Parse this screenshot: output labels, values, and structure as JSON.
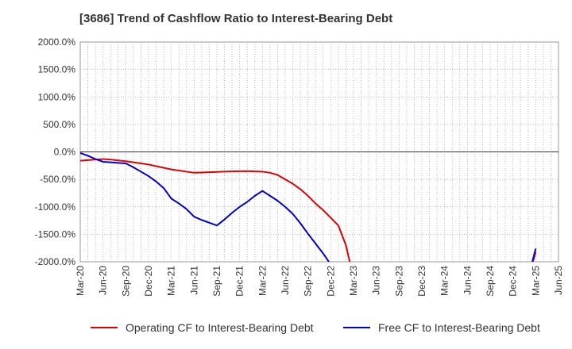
{
  "chart_data": {
    "type": "line",
    "title": "[3686]  Trend of Cashflow Ratio to Interest-Bearing Debt",
    "xlabel": "",
    "ylabel": "",
    "ylim": [
      -2000,
      2000
    ],
    "y_ticks": [
      "2000.0%",
      "1500.0%",
      "1000.0%",
      "500.0%",
      "0.0%",
      "-500.0%",
      "-1000.0%",
      "-1500.0%",
      "-2000.0%"
    ],
    "x_ticks": [
      "Mar-20",
      "Jun-20",
      "Sep-20",
      "Dec-20",
      "Mar-21",
      "Jun-21",
      "Sep-21",
      "Dec-21",
      "Mar-22",
      "Jun-22",
      "Sep-22",
      "Dec-22",
      "Mar-23",
      "Jun-23",
      "Sep-23",
      "Dec-23",
      "Mar-24",
      "Jun-24",
      "Sep-24",
      "Dec-24",
      "Mar-25",
      "Jun-25"
    ],
    "x": [
      "2020-03",
      "2020-04",
      "2020-05",
      "2020-06",
      "2020-07",
      "2020-08",
      "2020-09",
      "2020-10",
      "2020-11",
      "2020-12",
      "2021-01",
      "2021-02",
      "2021-03",
      "2021-04",
      "2021-05",
      "2021-06",
      "2021-07",
      "2021-08",
      "2021-09",
      "2021-10",
      "2021-11",
      "2021-12",
      "2022-01",
      "2022-02",
      "2022-03",
      "2022-04",
      "2022-05",
      "2022-06",
      "2022-07",
      "2022-08",
      "2022-09",
      "2022-10",
      "2022-11",
      "2022-12",
      "2023-01",
      "2023-02",
      "2023-03",
      "2023-04",
      "2023-05",
      "2023-06",
      "2023-07",
      "2023-08",
      "2023-09",
      "2023-10",
      "2023-11",
      "2023-12",
      "2024-01",
      "2024-02",
      "2024-03",
      "2024-04",
      "2024-05",
      "2024-06",
      "2024-07",
      "2024-08",
      "2024-09",
      "2024-10",
      "2024-11",
      "2024-12",
      "2025-01",
      "2025-02",
      "2025-03",
      "2025-04",
      "2025-05",
      "2025-06"
    ],
    "grid": true,
    "legend_position": "bottom",
    "series": [
      {
        "name": "Operating CF to Interest-Bearing Debt",
        "color": "#e00000",
        "values": [
          -160,
          -150,
          -140,
          -130,
          -140,
          -155,
          -170,
          -190,
          -210,
          -230,
          -260,
          -290,
          -320,
          -340,
          -360,
          -380,
          -375,
          -370,
          -365,
          -360,
          -355,
          -352,
          -350,
          -355,
          -360,
          -380,
          -420,
          -500,
          -580,
          -680,
          -800,
          -940,
          -1060,
          -1200,
          -1340,
          -1700,
          -2300,
          null,
          null,
          null,
          null,
          null,
          null,
          null,
          null,
          null,
          null,
          null,
          null,
          null,
          null,
          null,
          null,
          null,
          null,
          null,
          null,
          null,
          null,
          -2300,
          -1820,
          null,
          null,
          null
        ]
      },
      {
        "name": "Free CF to Interest-Bearing Debt",
        "color": "#0000d0",
        "values": [
          -20,
          -70,
          -130,
          -180,
          -190,
          -200,
          -210,
          -280,
          -360,
          -440,
          -540,
          -660,
          -850,
          -940,
          -1040,
          -1180,
          -1240,
          -1290,
          -1340,
          -1230,
          -1110,
          -1000,
          -910,
          -800,
          -710,
          -800,
          -890,
          -1000,
          -1130,
          -1300,
          -1490,
          -1670,
          -1850,
          -2050,
          null,
          null,
          null,
          null,
          null,
          null,
          null,
          null,
          null,
          null,
          null,
          null,
          null,
          null,
          null,
          null,
          null,
          null,
          null,
          null,
          null,
          null,
          null,
          null,
          null,
          -2300,
          -1760,
          null,
          null,
          null
        ]
      }
    ]
  }
}
